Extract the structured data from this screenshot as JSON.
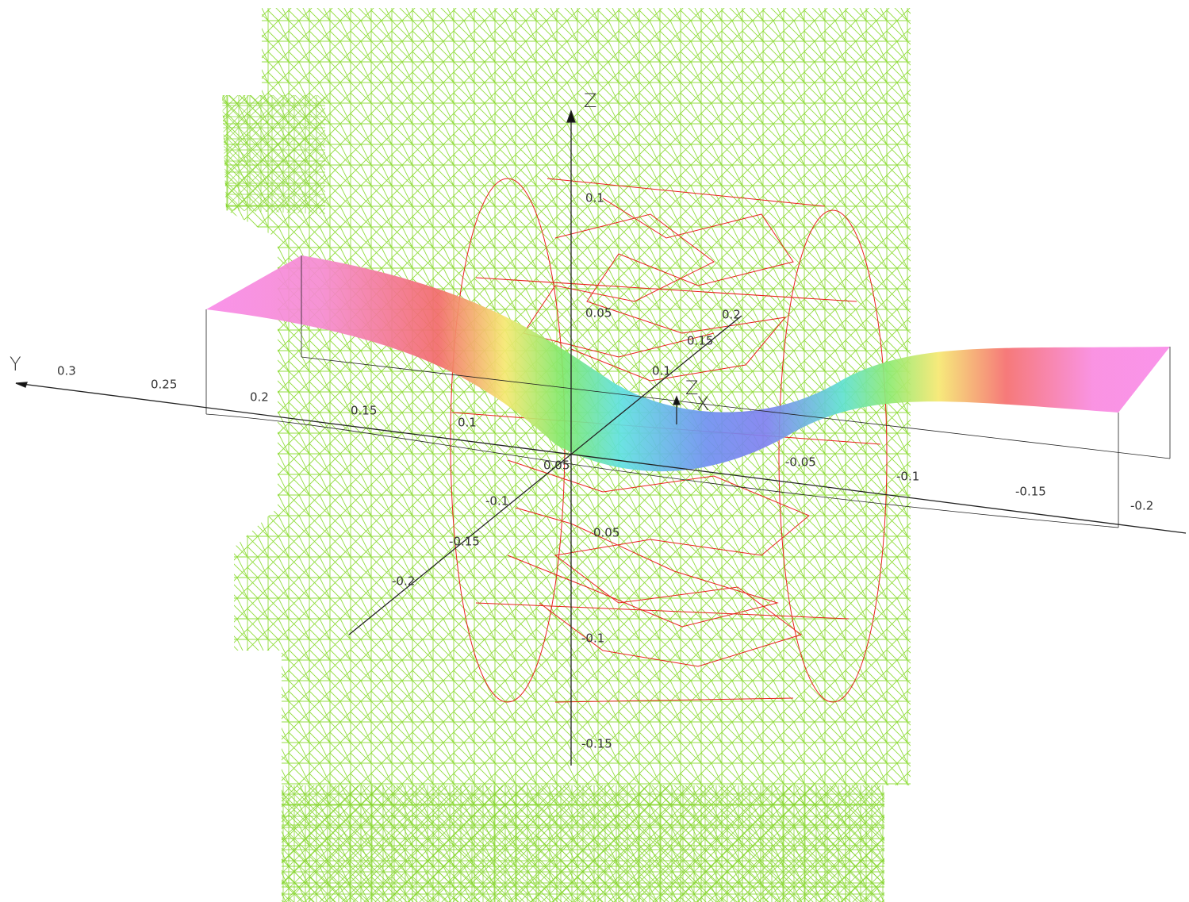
{
  "axes": {
    "y": {
      "name": "Y",
      "ticks": [
        "0.3",
        "0.25",
        "0.2",
        "0.15",
        "0.1",
        "0.05",
        "-0.05",
        "-0.1",
        "-0.15",
        "-0.2"
      ]
    },
    "z": {
      "name": "Z",
      "ticks": [
        "0.1",
        "0.05",
        "0.05",
        "-0.1",
        "-0.15"
      ]
    },
    "x": {
      "ticks": [
        "0.2",
        "0.15",
        "0.1",
        "-0.1",
        "-0.15",
        "-0.2"
      ]
    },
    "triad": {
      "z": "Z",
      "x": "X"
    }
  }
}
